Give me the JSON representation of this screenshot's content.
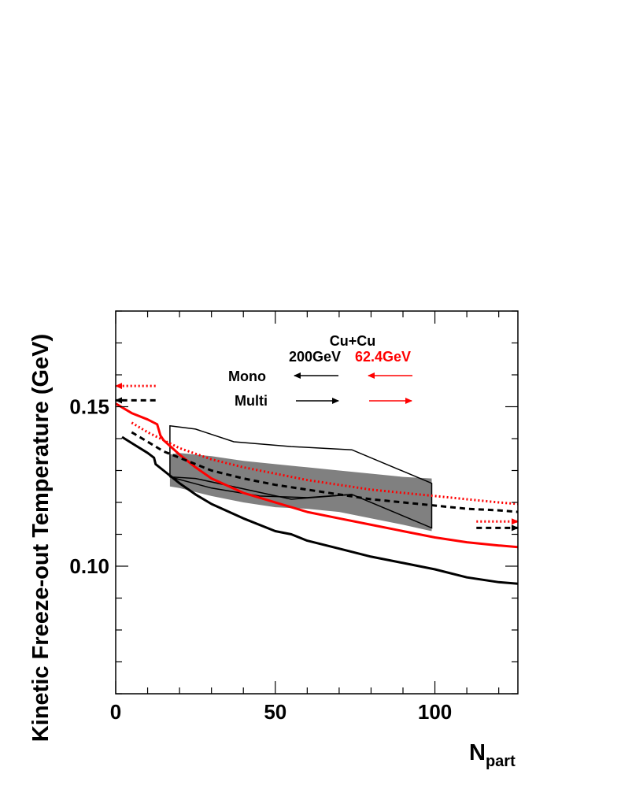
{
  "chart_data": {
    "type": "line",
    "title": "",
    "xlabel": "N",
    "xlabel_sub": "part",
    "ylabel": "Kinetic Freeze-out Temperature (GeV)",
    "xlim": [
      0,
      126
    ],
    "ylim": [
      0.06,
      0.18
    ],
    "x_ticks": [
      {
        "value": 0,
        "label": "0"
      },
      {
        "value": 50,
        "label": "50"
      },
      {
        "value": 100,
        "label": "100"
      }
    ],
    "y_ticks": [
      {
        "value": 0.1,
        "label": "0.10"
      },
      {
        "value": 0.15,
        "label": "0.15"
      }
    ],
    "legend": {
      "title": "Cu+Cu",
      "energy_200": "200GeV",
      "energy_62": "62.4GeV",
      "mono": "Mono",
      "multi": "Multi"
    },
    "colors": {
      "black": "#000000",
      "red": "#ff0000",
      "band": "#808080"
    },
    "series": [
      {
        "name": "200GeV Mono",
        "color": "#000000",
        "style": "solid",
        "x": [
          2,
          6,
          10,
          12,
          12.5,
          15,
          20,
          25,
          30,
          40,
          50,
          55,
          60,
          70,
          80,
          90,
          100,
          110,
          120,
          126
        ],
        "y": [
          0.1405,
          0.138,
          0.1355,
          0.134,
          0.132,
          0.13,
          0.126,
          0.1225,
          0.1195,
          0.115,
          0.111,
          0.11,
          0.108,
          0.1055,
          0.103,
          0.101,
          0.099,
          0.0965,
          0.095,
          0.0945
        ]
      },
      {
        "name": "62.4GeV Mono",
        "color": "#ff0000",
        "style": "solid",
        "x": [
          0,
          5,
          10,
          12,
          13,
          14,
          15,
          20,
          25,
          30,
          40,
          50,
          60,
          70,
          80,
          90,
          100,
          110,
          120,
          126
        ],
        "y": [
          0.151,
          0.148,
          0.146,
          0.145,
          0.1445,
          0.141,
          0.1395,
          0.135,
          0.131,
          0.1275,
          0.123,
          0.12,
          0.117,
          0.115,
          0.113,
          0.111,
          0.109,
          0.1075,
          0.1065,
          0.106
        ]
      },
      {
        "name": "200GeV Multi",
        "color": "#000000",
        "style": "dashed",
        "x": [
          5,
          10,
          15,
          20,
          30,
          40,
          50,
          60,
          70,
          80,
          90,
          100,
          110,
          120,
          126
        ],
        "y": [
          0.142,
          0.139,
          0.136,
          0.134,
          0.13,
          0.1275,
          0.1255,
          0.124,
          0.1225,
          0.121,
          0.12,
          0.119,
          0.118,
          0.1175,
          0.117
        ]
      },
      {
        "name": "62.4GeV Multi",
        "color": "#ff0000",
        "style": "dotted",
        "x": [
          5,
          10,
          15,
          20,
          30,
          40,
          50,
          60,
          70,
          80,
          90,
          100,
          110,
          120,
          126
        ],
        "y": [
          0.145,
          0.142,
          0.1395,
          0.137,
          0.1335,
          0.131,
          0.129,
          0.127,
          0.1255,
          0.124,
          0.123,
          0.122,
          0.121,
          0.12,
          0.1195
        ]
      }
    ],
    "band": {
      "name": "grey systematic band",
      "color": "#808080",
      "x": [
        17,
        20,
        30,
        40,
        50,
        60,
        70,
        80,
        90,
        99
      ],
      "upper": [
        0.135,
        0.1355,
        0.1345,
        0.133,
        0.132,
        0.131,
        0.13,
        0.129,
        0.128,
        0.1275
      ],
      "lower": [
        0.125,
        0.1245,
        0.122,
        0.12,
        0.1185,
        0.118,
        0.117,
        0.115,
        0.113,
        0.111
      ]
    },
    "outline": {
      "name": "black outlined region",
      "x": [
        17,
        25,
        37,
        55,
        74,
        99,
        99,
        74,
        55,
        25,
        17
      ],
      "y": [
        0.144,
        0.143,
        0.139,
        0.1375,
        0.1365,
        0.126,
        0.112,
        0.1225,
        0.121,
        0.1275,
        0.128
      ]
    },
    "outline_inner": {
      "name": "inner outline diagonal",
      "x": [
        17,
        30,
        45,
        60,
        74
      ],
      "y": [
        0.128,
        0.1245,
        0.122,
        0.1215,
        0.1225
      ]
    },
    "limit_arrows": [
      {
        "name": "red-left-limit",
        "color": "#ff0000",
        "style": "dotted",
        "y": 0.1565,
        "x_from": 12.5,
        "x_to": 0
      },
      {
        "name": "black-left-limit",
        "color": "#000000",
        "style": "dashed",
        "y": 0.152,
        "x_from": 12.5,
        "x_to": 0
      },
      {
        "name": "red-right-limit",
        "color": "#ff0000",
        "style": "dotted",
        "y": 0.114,
        "x_from": 113,
        "x_to": 126
      },
      {
        "name": "black-right-limit",
        "color": "#000000",
        "style": "dashed",
        "y": 0.112,
        "x_from": 113,
        "x_to": 126
      }
    ]
  }
}
